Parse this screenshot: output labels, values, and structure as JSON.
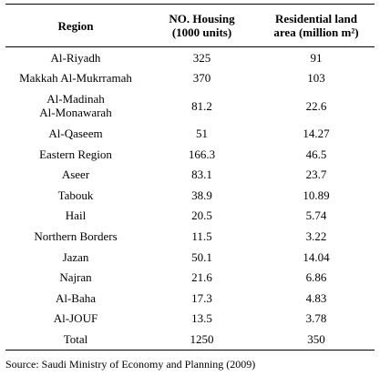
{
  "table": {
    "headers": [
      {
        "line1": "Region",
        "line2": ""
      },
      {
        "line1": "NO. Housing",
        "line2": "(1000 units)"
      },
      {
        "line1": "Residential land",
        "line2": "area (million m²)"
      }
    ],
    "rows": [
      {
        "region": "Al-Riyadh",
        "housing": "325",
        "land": "91"
      },
      {
        "region": "Makkah Al-Mukrramah",
        "housing": "370",
        "land": "103"
      },
      {
        "region": "Al-Madinah Al-Monawarah",
        "housing": "81.2",
        "land": "22.6"
      },
      {
        "region": "Al-Qaseem",
        "housing": "51",
        "land": "14.27"
      },
      {
        "region": "Eastern Region",
        "housing": "166.3",
        "land": "46.5"
      },
      {
        "region": "Aseer",
        "housing": "83.1",
        "land": "23.7"
      },
      {
        "region": "Tabouk",
        "housing": "38.9",
        "land": "10.89"
      },
      {
        "region": "Hail",
        "housing": "20.5",
        "land": "5.74"
      },
      {
        "region": "Northern Borders",
        "housing": "11.5",
        "land": "3.22"
      },
      {
        "region": "Jazan",
        "housing": "50.1",
        "land": "14.04"
      },
      {
        "region": "Najran",
        "housing": "21.6",
        "land": "6.86"
      },
      {
        "region": "Al-Baha",
        "housing": "17.3",
        "land": "4.83"
      },
      {
        "region": "Al-JOUF",
        "housing": "13.5",
        "land": "3.78"
      },
      {
        "region": "Total",
        "housing": "1250",
        "land": "350"
      }
    ]
  },
  "source": "Source: Saudi Ministry of Economy and Planning (2009)"
}
